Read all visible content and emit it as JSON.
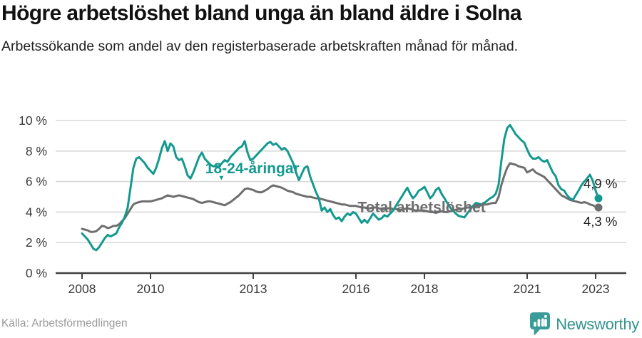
{
  "header": {
    "title": "Högre arbetslöshet bland unga än bland äldre i Solna",
    "subtitle": "Arbetssökande som andel av den registerbaserade arbetskraften månad för månad."
  },
  "footer": {
    "source": "Källa: Arbetsförmedlingen",
    "brand": "Newsworthy"
  },
  "colors": {
    "youth_line": "#14998f",
    "total_line": "#6e6e70",
    "gridline": "#d9d9d9",
    "axis": "#404040",
    "tick_text": "#3c3c3c",
    "end_label_text": "#1c1c1c",
    "logo_teal": "#3a9c98"
  },
  "chart_data": {
    "type": "line",
    "title": "",
    "xlabel": "",
    "ylabel": "",
    "x_start": {
      "year": 2008,
      "month": 1
    },
    "x_step_months": 1,
    "ylim": [
      0,
      10
    ],
    "grid": "horizontal",
    "legend_position": "inline-labels",
    "x_tick_years": [
      2008,
      2010,
      2013,
      2016,
      2018,
      2021,
      2023
    ],
    "y_tick_values": [
      0,
      2,
      4,
      6,
      8,
      10
    ],
    "y_tick_labels": [
      "0 %",
      "2 %",
      "4 %",
      "6 %",
      "8 %",
      "10 %"
    ],
    "series": [
      {
        "name": "Total arbetslöshet",
        "color": "#6e6e70",
        "end_label": "4,3 %",
        "end_value": 4.3,
        "label_pos": {
          "year": 2016.05,
          "value": 4.0
        },
        "values": [
          2.9,
          2.85,
          2.8,
          2.7,
          2.7,
          2.75,
          2.9,
          3.1,
          3.05,
          2.95,
          3.0,
          3.1,
          3.1,
          3.2,
          3.4,
          3.6,
          3.9,
          4.2,
          4.5,
          4.6,
          4.65,
          4.7,
          4.7,
          4.7,
          4.7,
          4.75,
          4.8,
          4.85,
          4.9,
          5.0,
          5.1,
          5.05,
          5.0,
          5.05,
          5.1,
          5.05,
          5.0,
          4.95,
          4.9,
          4.85,
          4.75,
          4.65,
          4.6,
          4.65,
          4.7,
          4.7,
          4.65,
          4.6,
          4.55,
          4.5,
          4.45,
          4.55,
          4.65,
          4.8,
          4.95,
          5.1,
          5.3,
          5.5,
          5.55,
          5.5,
          5.45,
          5.35,
          5.3,
          5.3,
          5.4,
          5.5,
          5.65,
          5.75,
          5.7,
          5.65,
          5.6,
          5.5,
          5.4,
          5.35,
          5.3,
          5.2,
          5.15,
          5.1,
          5.05,
          5.0,
          5.0,
          4.95,
          4.9,
          4.9,
          4.85,
          4.8,
          4.75,
          4.7,
          4.65,
          4.6,
          4.55,
          4.5,
          4.5,
          4.45,
          4.4,
          4.4,
          4.4,
          4.35,
          4.3,
          4.3,
          4.25,
          4.25,
          4.3,
          4.3,
          4.25,
          4.2,
          4.2,
          4.25,
          4.25,
          4.2,
          4.2,
          4.15,
          4.15,
          4.2,
          4.25,
          4.2,
          4.15,
          4.1,
          4.1,
          4.1,
          4.1,
          4.05,
          4.0,
          4.0,
          3.95,
          4.0,
          4.05,
          4.0,
          4.0,
          4.05,
          4.1,
          4.15,
          4.2,
          4.2,
          4.25,
          4.3,
          4.3,
          4.35,
          4.4,
          4.4,
          4.45,
          4.5,
          4.5,
          4.55,
          4.6,
          4.6,
          5.0,
          5.8,
          6.4,
          6.9,
          7.2,
          7.15,
          7.1,
          7.0,
          6.95,
          6.9,
          6.6,
          6.7,
          6.8,
          6.6,
          6.5,
          6.4,
          6.3,
          6.1,
          5.9,
          5.7,
          5.5,
          5.3,
          5.1,
          5.0,
          4.9,
          4.8,
          4.75,
          4.7,
          4.65,
          4.6,
          4.65,
          4.6,
          4.5,
          4.45,
          4.35,
          4.3
        ]
      },
      {
        "name": "18-24-åringar",
        "color": "#14998f",
        "end_label": "4,9 %",
        "end_value": 4.9,
        "label_pos": {
          "year": 2011.6,
          "value": 6.55
        },
        "label_arrow": {
          "glyph": "▼",
          "year": 2012.07,
          "value": 6.1
        },
        "values": [
          2.6,
          2.4,
          2.2,
          1.9,
          1.6,
          1.5,
          1.7,
          2.0,
          2.3,
          2.5,
          2.4,
          2.5,
          2.6,
          3.0,
          3.3,
          3.7,
          4.3,
          5.6,
          6.9,
          7.5,
          7.6,
          7.4,
          7.2,
          6.9,
          6.7,
          6.5,
          6.9,
          7.5,
          8.2,
          8.65,
          8.0,
          8.5,
          8.3,
          7.6,
          7.4,
          7.5,
          7.0,
          6.4,
          6.2,
          6.6,
          7.1,
          7.6,
          7.9,
          7.5,
          7.3,
          7.1,
          7.0,
          7.0,
          7.0,
          7.2,
          7.4,
          7.3,
          7.6,
          7.8,
          8.0,
          8.2,
          8.3,
          8.65,
          7.9,
          7.4,
          7.5,
          7.7,
          7.9,
          8.1,
          8.3,
          8.5,
          8.6,
          8.4,
          8.5,
          8.3,
          8.1,
          8.2,
          8.0,
          7.6,
          7.2,
          6.6,
          6.1,
          6.5,
          6.9,
          7.0,
          6.3,
          5.8,
          5.3,
          4.9,
          4.1,
          4.3,
          4.0,
          4.2,
          3.8,
          3.55,
          3.65,
          3.4,
          3.7,
          3.9,
          3.8,
          4.0,
          3.9,
          3.6,
          3.3,
          3.5,
          3.3,
          3.6,
          3.9,
          3.7,
          3.5,
          3.6,
          3.8,
          3.7,
          3.9,
          4.1,
          4.4,
          4.7,
          5.0,
          5.3,
          5.6,
          5.2,
          4.9,
          5.1,
          5.4,
          5.5,
          5.65,
          5.3,
          4.9,
          5.1,
          5.45,
          5.6,
          5.2,
          4.9,
          4.6,
          4.3,
          4.1,
          3.9,
          3.75,
          3.7,
          3.65,
          3.9,
          4.15,
          4.4,
          4.6,
          4.55,
          4.5,
          4.6,
          4.75,
          4.9,
          5.0,
          5.2,
          5.8,
          7.4,
          8.8,
          9.5,
          9.7,
          9.4,
          9.1,
          8.9,
          8.7,
          8.55,
          8.1,
          7.7,
          7.5,
          7.5,
          7.6,
          7.4,
          7.3,
          7.4,
          7.0,
          6.6,
          6.35,
          5.75,
          5.5,
          5.4,
          5.1,
          4.9,
          4.8,
          5.1,
          5.4,
          5.75,
          6.0,
          6.2,
          6.45,
          6.05,
          5.4,
          4.9
        ]
      }
    ]
  }
}
